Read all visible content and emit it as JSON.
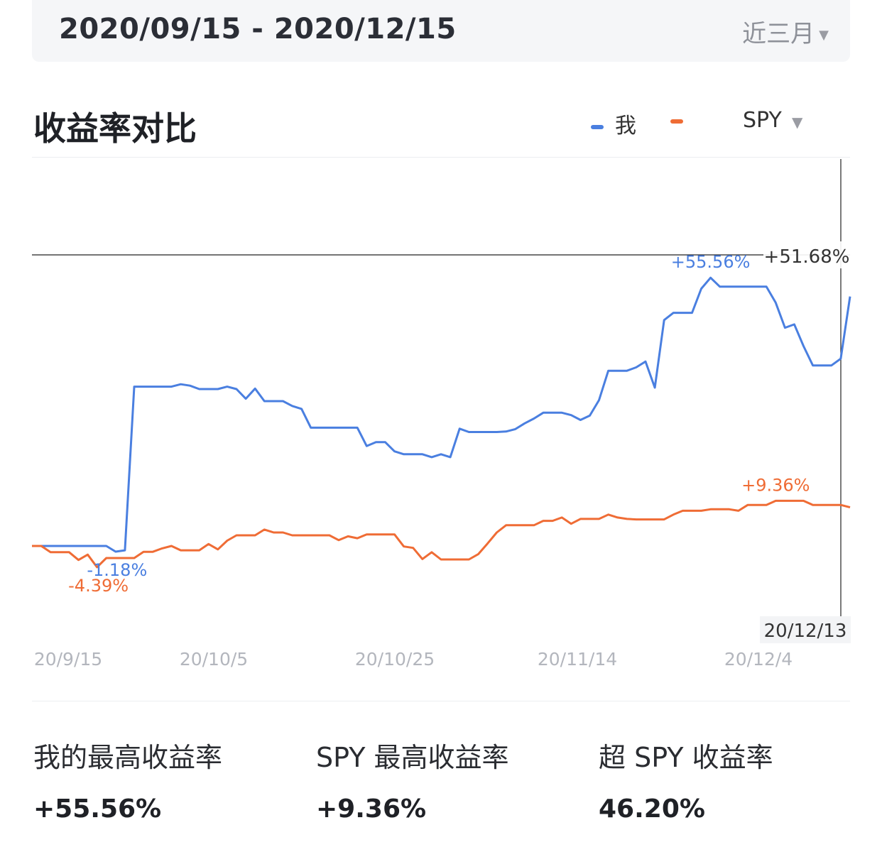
{
  "header": {
    "date_range": "2020/09/15 - 2020/12/15",
    "period_label": "近三月"
  },
  "section_title": "收益率对比",
  "legend": {
    "items": [
      {
        "label": "我",
        "color": "#4a7fe0"
      },
      {
        "label": "SPY",
        "color": "#ef6c35"
      }
    ]
  },
  "crosshair": {
    "value_label": "+51.68%",
    "date_label": "20/12/13"
  },
  "chart_data": {
    "type": "line",
    "x_ticks": [
      "20/9/15",
      "20/10/5",
      "20/10/25",
      "20/11/14",
      "20/12/4"
    ],
    "y_range": [
      -15,
      75
    ],
    "x_range": [
      "2020-09-15",
      "2020-12-15"
    ],
    "grid": false,
    "legend_position": "top-right",
    "series": [
      {
        "name": "我",
        "color": "#4a7fe0",
        "values": [
          0,
          0,
          0,
          0,
          0,
          0,
          0,
          0,
          0,
          -1.18,
          -0.9,
          33,
          33,
          33,
          33,
          33,
          33.5,
          33.2,
          32.5,
          32.5,
          32.5,
          33,
          32.5,
          30.5,
          32.6,
          30,
          30,
          30,
          29,
          28.4,
          24.5,
          24.5,
          24.5,
          24.5,
          24.5,
          24.5,
          20.7,
          21.5,
          21.5,
          19.6,
          19,
          19,
          19,
          18.4,
          19,
          18.4,
          24.3,
          23.6,
          23.6,
          23.6,
          23.6,
          23.7,
          24.2,
          25.4,
          26.4,
          27.6,
          27.6,
          27.6,
          27.1,
          26.1,
          27,
          30.2,
          36.3,
          36.3,
          36.3,
          37,
          38.2,
          32.8,
          46.8,
          48.3,
          48.3,
          48.3,
          53.3,
          55.56,
          53.7,
          53.7,
          53.7,
          53.7,
          53.7,
          53.7,
          50.4,
          45.2,
          45.9,
          41.4,
          37.4,
          37.4,
          37.4,
          38.8,
          51.68
        ]
      },
      {
        "name": "SPY",
        "color": "#ef6c35",
        "values": [
          0,
          0,
          -1.3,
          -1.3,
          -1.3,
          -2.9,
          -1.8,
          -4.39,
          -2.5,
          -2.5,
          -2.5,
          -2.5,
          -1.2,
          -1.2,
          -0.5,
          0,
          -0.9,
          -0.9,
          -0.9,
          0.4,
          -0.7,
          1.1,
          2.2,
          2.2,
          2.2,
          3.4,
          2.8,
          2.8,
          2.2,
          2.2,
          2.2,
          2.2,
          2.2,
          1.2,
          2.0,
          1.6,
          2.4,
          2.4,
          2.4,
          2.4,
          -0.1,
          -0.4,
          -2.7,
          -1.3,
          -2.8,
          -2.8,
          -2.8,
          -2.8,
          -1.7,
          0.5,
          2.8,
          4.3,
          4.3,
          4.3,
          4.3,
          5.2,
          5.2,
          5.9,
          4.6,
          5.6,
          5.6,
          5.6,
          6.5,
          5.9,
          5.6,
          5.5,
          5.5,
          5.5,
          5.5,
          6.5,
          7.3,
          7.3,
          7.3,
          7.6,
          7.6,
          7.6,
          7.3,
          8.5,
          8.5,
          8.5,
          9.36,
          9.36,
          9.36,
          9.36,
          8.5,
          8.5,
          8.5,
          8.5,
          8.0
        ]
      }
    ],
    "annotations": [
      {
        "series": "我",
        "label": "+55.56%"
      },
      {
        "series": "我",
        "label": "-1.18%"
      },
      {
        "series": "SPY",
        "label": "+9.36%"
      },
      {
        "series": "SPY",
        "label": "-4.39%"
      }
    ]
  },
  "stats": [
    {
      "label": "我的最高收益率",
      "value": "+55.56%"
    },
    {
      "label": "SPY 最高收益率",
      "value": "+9.36%"
    },
    {
      "label": "超 SPY 收益率",
      "value": "46.20%"
    }
  ]
}
